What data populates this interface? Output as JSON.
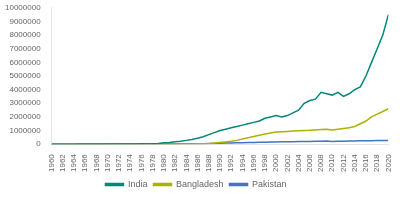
{
  "chart_data": {
    "type": "line",
    "x": [
      1960,
      1961,
      1962,
      1963,
      1964,
      1965,
      1966,
      1967,
      1968,
      1969,
      1970,
      1971,
      1972,
      1973,
      1974,
      1975,
      1976,
      1977,
      1978,
      1979,
      1980,
      1981,
      1982,
      1983,
      1984,
      1985,
      1986,
      1987,
      1988,
      1989,
      1990,
      1991,
      1992,
      1993,
      1994,
      1995,
      1996,
      1997,
      1998,
      1999,
      2000,
      2001,
      2002,
      2003,
      2004,
      2005,
      2006,
      2007,
      2008,
      2009,
      2010,
      2011,
      2012,
      2013,
      2014,
      2015,
      2016,
      2017,
      2018,
      2019,
      2020
    ],
    "series": [
      {
        "name": "India",
        "color": "#008878",
        "values": [
          1000,
          2000,
          3000,
          4000,
          5000,
          6000,
          7000,
          8000,
          9000,
          10000,
          12000,
          14000,
          16000,
          18000,
          20000,
          22000,
          25000,
          30000,
          40000,
          60000,
          100000,
          130000,
          180000,
          220000,
          280000,
          350000,
          430000,
          550000,
          700000,
          850000,
          1000000,
          1100000,
          1200000,
          1300000,
          1400000,
          1500000,
          1600000,
          1700000,
          1900000,
          2000000,
          2100000,
          2000000,
          2100000,
          2300000,
          2500000,
          3000000,
          3200000,
          3300000,
          3800000,
          3700000,
          3600000,
          3800000,
          3500000,
          3700000,
          4000000,
          4200000,
          5000000,
          6000000,
          7000000,
          8000000,
          9500000
        ]
      },
      {
        "name": "Bangladesh",
        "color": "#a8b400",
        "values": [
          0,
          0,
          0,
          0,
          0,
          0,
          0,
          0,
          0,
          0,
          0,
          0,
          0,
          0,
          0,
          0,
          0,
          0,
          0,
          0,
          1000,
          3000,
          5000,
          8000,
          12000,
          18000,
          25000,
          40000,
          60000,
          90000,
          130000,
          170000,
          210000,
          280000,
          380000,
          480000,
          570000,
          660000,
          740000,
          820000,
          900000,
          920000,
          940000,
          960000,
          980000,
          1000000,
          1020000,
          1050000,
          1080000,
          1100000,
          1050000,
          1100000,
          1150000,
          1200000,
          1300000,
          1500000,
          1700000,
          2000000,
          2200000,
          2400000,
          2600000
        ]
      },
      {
        "name": "Pakistan",
        "color": "#4472c4",
        "values": [
          1000,
          1000,
          2000,
          2000,
          2000,
          3000,
          3000,
          4000,
          4000,
          5000,
          5000,
          6000,
          6000,
          7000,
          8000,
          9000,
          10000,
          12000,
          14000,
          16000,
          18000,
          20000,
          22000,
          25000,
          28000,
          32000,
          36000,
          42000,
          50000,
          60000,
          70000,
          80000,
          90000,
          100000,
          110000,
          120000,
          130000,
          140000,
          150000,
          160000,
          170000,
          175000,
          180000,
          185000,
          190000,
          195000,
          200000,
          210000,
          220000,
          230000,
          200000,
          210000,
          220000,
          230000,
          240000,
          250000,
          255000,
          260000,
          265000,
          270000,
          275000
        ]
      }
    ],
    "xlim": [
      1960,
      2020
    ],
    "xticks": [
      1960,
      1962,
      1964,
      1966,
      1968,
      1970,
      1972,
      1974,
      1976,
      1978,
      1980,
      1982,
      1984,
      1986,
      1988,
      1990,
      1992,
      1994,
      1996,
      1998,
      2000,
      2002,
      2004,
      2006,
      2008,
      2010,
      2012,
      2014,
      2016,
      2018,
      2020
    ],
    "ylim": [
      0,
      10000000
    ],
    "yticks": [
      0,
      1000000,
      2000000,
      3000000,
      4000000,
      5000000,
      6000000,
      7000000,
      8000000,
      9000000,
      10000000
    ],
    "grid": false,
    "legend": "bottom"
  }
}
